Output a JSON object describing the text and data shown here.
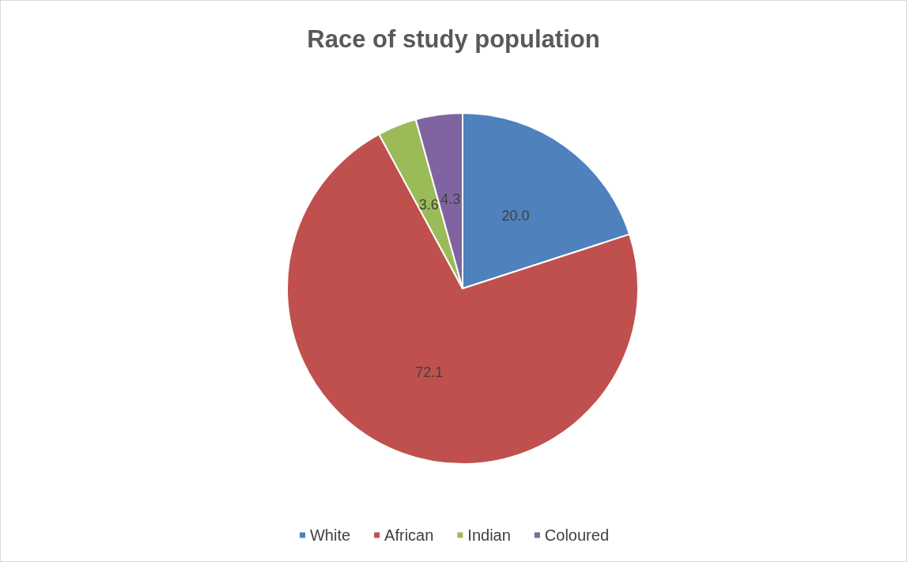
{
  "chart_data": {
    "type": "pie",
    "title": "Race of study population",
    "categories": [
      "White",
      "African",
      "Indian",
      "Coloured"
    ],
    "values": [
      20.0,
      72.1,
      3.6,
      4.3
    ],
    "colors": [
      "#4f81bd",
      "#c0504d",
      "#9bbb59",
      "#8064a2"
    ],
    "value_labels": [
      "20.0",
      "72.1",
      "3.6",
      "4.3"
    ],
    "legend": "bottom"
  }
}
